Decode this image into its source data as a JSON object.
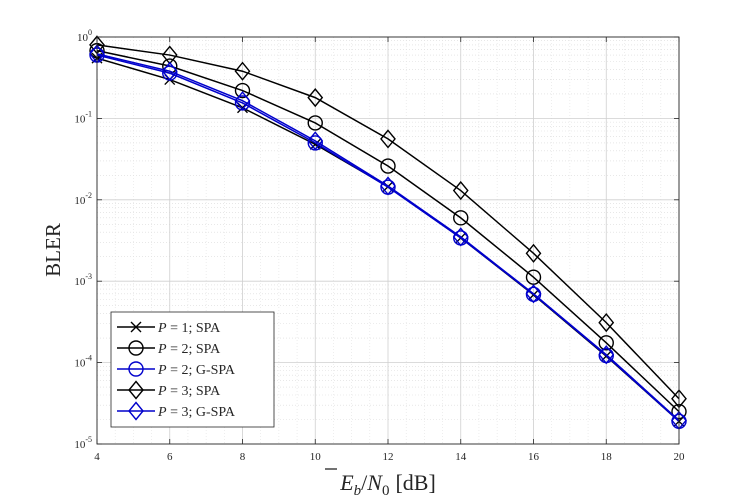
{
  "chart_data": {
    "type": "line",
    "title": "",
    "xlabel_parts": {
      "e": "E",
      "b": "b",
      "slash": "/",
      "n": "N",
      "zero": "0",
      "unit": "[dB]"
    },
    "ylabel": "BLER",
    "x": [
      4,
      6,
      8,
      10,
      12,
      14,
      16,
      18,
      20
    ],
    "xlim": [
      4,
      20
    ],
    "ylim": [
      1e-05,
      1
    ],
    "yscale": "log",
    "x_ticks": [
      "4",
      "6",
      "8",
      "10",
      "12",
      "14",
      "16",
      "18",
      "20"
    ],
    "y_ticks": [
      {
        "base": "10",
        "exp": "0"
      },
      {
        "base": "10",
        "exp": "-1"
      },
      {
        "base": "10",
        "exp": "-2"
      },
      {
        "base": "10",
        "exp": "-3"
      },
      {
        "base": "10",
        "exp": "-4"
      },
      {
        "base": "10",
        "exp": "-5"
      }
    ],
    "grid": true,
    "legend_position": "bottom-left",
    "series": [
      {
        "name": "P = 1; SPA",
        "label_var": "P",
        "label_rest": " = 1; SPA",
        "color": "#000000",
        "marker": "x",
        "values": [
          0.55,
          0.3,
          0.135,
          0.048,
          0.0145,
          0.0034,
          0.00068,
          0.00012,
          1.9e-05
        ]
      },
      {
        "name": "P = 2; SPA",
        "label_var": "P",
        "label_rest": " = 2; SPA",
        "color": "#000000",
        "marker": "circle",
        "values": [
          0.68,
          0.44,
          0.22,
          0.088,
          0.026,
          0.006,
          0.00112,
          0.000175,
          2.5e-05
        ]
      },
      {
        "name": "P = 2; G-SPA",
        "label_var": "P",
        "label_rest": " = 2; G-SPA",
        "color": "#0000cc",
        "marker": "circle",
        "values": [
          0.6,
          0.36,
          0.155,
          0.05,
          0.0143,
          0.0034,
          0.00069,
          0.000122,
          1.9e-05
        ]
      },
      {
        "name": "P = 3; SPA",
        "label_var": "P",
        "label_rest": " = 3; SPA",
        "color": "#000000",
        "marker": "diamond",
        "values": [
          0.8,
          0.6,
          0.38,
          0.18,
          0.056,
          0.013,
          0.0022,
          0.00031,
          3.6e-05
        ]
      },
      {
        "name": "P = 3; G-SPA",
        "label_var": "P",
        "label_rest": " = 3; G-SPA",
        "color": "#0000cc",
        "marker": "diamond",
        "values": [
          0.62,
          0.38,
          0.165,
          0.053,
          0.0148,
          0.0035,
          0.0007,
          0.000125,
          1.95e-05
        ]
      }
    ]
  }
}
